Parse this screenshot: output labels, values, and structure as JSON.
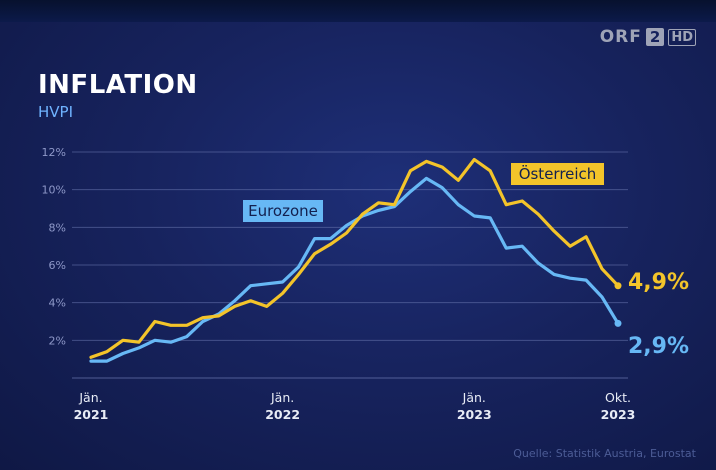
{
  "logo": {
    "orf": "ORF",
    "channel": "2",
    "hd": "HD"
  },
  "title": "INFLATION",
  "subtitle": "HVPI",
  "source": "Quelle: Statistik Austria, Eurostat",
  "colors": {
    "oesterreich": "#f3c42a",
    "eurozone": "#67b8f5",
    "grid": "#6a77b0"
  },
  "chart_data": {
    "type": "line",
    "ylim": [
      0,
      12
    ],
    "yticks": [
      2,
      4,
      6,
      8,
      10,
      12
    ],
    "ytick_labels": [
      "2%",
      "4%",
      "6%",
      "8%",
      "10%",
      "12%"
    ],
    "x_start": "2021-01",
    "x_end": "2023-10",
    "xticks": [
      {
        "month": "2021-01",
        "line1": "Jän.",
        "line2": "2021"
      },
      {
        "month": "2022-01",
        "line1": "Jän.",
        "line2": "2022"
      },
      {
        "month": "2023-01",
        "line1": "Jän.",
        "line2": "2023"
      },
      {
        "month": "2023-10",
        "line1": "Okt.",
        "line2": "2023"
      }
    ],
    "series": [
      {
        "name": "Österreich",
        "end_label": "4,9%",
        "values": [
          1.1,
          1.4,
          2.0,
          1.9,
          3.0,
          2.8,
          2.8,
          3.2,
          3.3,
          3.8,
          4.1,
          3.8,
          4.5,
          5.5,
          6.6,
          7.1,
          7.7,
          8.7,
          9.3,
          9.2,
          11.0,
          11.5,
          11.2,
          10.5,
          11.6,
          11.0,
          9.2,
          9.4,
          8.7,
          7.8,
          7.0,
          7.5,
          5.8,
          4.9
        ]
      },
      {
        "name": "Eurozone",
        "end_label": "2,9%",
        "values": [
          0.9,
          0.9,
          1.3,
          1.6,
          2.0,
          1.9,
          2.2,
          3.0,
          3.4,
          4.1,
          4.9,
          5.0,
          5.1,
          5.9,
          7.4,
          7.4,
          8.1,
          8.6,
          8.9,
          9.1,
          9.9,
          10.6,
          10.1,
          9.2,
          8.6,
          8.5,
          6.9,
          7.0,
          6.1,
          5.5,
          5.3,
          5.2,
          4.3,
          2.9
        ]
      }
    ]
  }
}
